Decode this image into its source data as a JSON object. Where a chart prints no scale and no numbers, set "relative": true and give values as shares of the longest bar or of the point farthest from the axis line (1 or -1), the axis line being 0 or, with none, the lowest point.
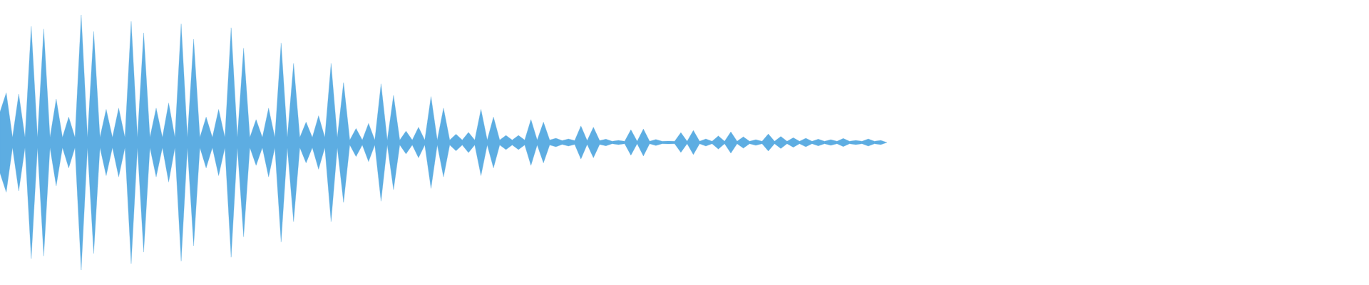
{
  "chart_data": {
    "type": "area",
    "relative": true,
    "categories": [
      null,
      null,
      null,
      null,
      null,
      null,
      null,
      null,
      null,
      null,
      null,
      null,
      null,
      null,
      null,
      null,
      null,
      null,
      null,
      null,
      null,
      null,
      null,
      null,
      null,
      null,
      null,
      null,
      null,
      null,
      null,
      null,
      null,
      null,
      null,
      null,
      null,
      null,
      null,
      null,
      null,
      null,
      null,
      null,
      null,
      null,
      null,
      null,
      null,
      null,
      null,
      null,
      null,
      null,
      null,
      null,
      null,
      null,
      null,
      null,
      null,
      null,
      null,
      null,
      null,
      null,
      null,
      null,
      null,
      null,
      null,
      null,
      null,
      null,
      null,
      null,
      null,
      null,
      null,
      null,
      null,
      null,
      null,
      null,
      null,
      null,
      null,
      null,
      null,
      null,
      null,
      null,
      null,
      null,
      null,
      null,
      null,
      null,
      null,
      null,
      null,
      null,
      null,
      null,
      null,
      null,
      null,
      null,
      null,
      null,
      null,
      null,
      null,
      null,
      null,
      null,
      null,
      null,
      null,
      null,
      null,
      null,
      null,
      null,
      null,
      null,
      null,
      null,
      null,
      null,
      null,
      null,
      null,
      null,
      null,
      null,
      null,
      null,
      null,
      null,
      null,
      null,
      null
    ],
    "series": [
      {
        "color": "#5dade2",
        "values": [
          0.24,
          0.39,
          0.04,
          0.38,
          0.04,
          0.91,
          0.04,
          0.89,
          0.04,
          0.34,
          0.04,
          0.2,
          0.04,
          1,
          0.04,
          0.87,
          0.04,
          0.26,
          0.04,
          0.27,
          0.04,
          0.95,
          0.04,
          0.86,
          0.04,
          0.27,
          0.04,
          0.31,
          0.04,
          0.93,
          0.04,
          0.81,
          0.04,
          0.2,
          0.04,
          0.26,
          0.04,
          0.9,
          0.04,
          0.74,
          0.04,
          0.18,
          0.04,
          0.27,
          0.04,
          0.78,
          0.04,
          0.62,
          0.04,
          0.16,
          0.04,
          0.21,
          0.04,
          0.62,
          0.04,
          0.47,
          0.02,
          0.11,
          0.02,
          0.15,
          0.02,
          0.46,
          0.02,
          0.37,
          0.02,
          0.09,
          0.02,
          0.12,
          0.02,
          0.36,
          0.02,
          0.27,
          0.02,
          0.065,
          0.02,
          0.08,
          0.02,
          0.26,
          0.02,
          0.2,
          0.02,
          0.056,
          0.02,
          0.056,
          0.02,
          0.18,
          0.02,
          0.16,
          0.02,
          0.034,
          0.015,
          0.028,
          0.015,
          0.13,
          0.015,
          0.12,
          0.015,
          0.026,
          0.01,
          0.017,
          0.01,
          0.1,
          0.01,
          0.106,
          0.01,
          0.024,
          0.01,
          0.011,
          0.01,
          0.078,
          0.01,
          0.095,
          0.01,
          0.028,
          0.01,
          0.052,
          0.01,
          0.084,
          0.01,
          0.045,
          0.01,
          0.022,
          0.01,
          0.067,
          0.01,
          0.047,
          0.01,
          0.037,
          0.01,
          0.034,
          0.01,
          0.026,
          0.01,
          0.022,
          0.01,
          0.032,
          0.01,
          0.017,
          0.01,
          0.028,
          0.01,
          0.017,
          0
        ]
      }
    ]
  }
}
